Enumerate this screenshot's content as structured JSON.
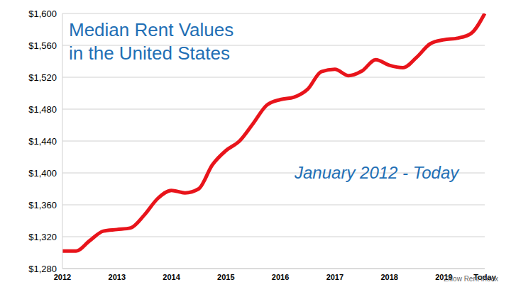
{
  "chart_data": {
    "type": "line",
    "title": "Median Rent Values in the United States",
    "annotation": "January 2012 - Today",
    "source": "Zillow Rent Index",
    "categories": [
      "2012",
      null,
      null,
      null,
      "2013",
      null,
      null,
      null,
      "2014",
      null,
      null,
      null,
      "2015",
      null,
      null,
      null,
      "2016",
      null,
      null,
      null,
      "2017",
      null,
      null,
      null,
      "2018",
      null,
      null,
      null,
      "2019",
      null,
      null,
      "Today"
    ],
    "values": [
      1302,
      1302,
      1315,
      1327,
      1329,
      1331,
      1347,
      1368,
      1378,
      1375,
      1380,
      1410,
      1428,
      1440,
      1462,
      1485,
      1492,
      1495,
      1505,
      1527,
      1530,
      1522,
      1528,
      1542,
      1535,
      1532,
      1545,
      1562,
      1567,
      1569,
      1575,
      1600
    ],
    "color": "#e8141b",
    "ylim": [
      1280,
      1600
    ],
    "yticks": [
      {
        "value": 1280,
        "label": "$1,280"
      },
      {
        "value": 1320,
        "label": "$1,320"
      },
      {
        "value": 1360,
        "label": "$1,360"
      },
      {
        "value": 1400,
        "label": "$1,400"
      },
      {
        "value": 1440,
        "label": "$1,440"
      },
      {
        "value": 1480,
        "label": "$1,480"
      },
      {
        "value": 1520,
        "label": "$1,520"
      },
      {
        "value": 1560,
        "label": "$1,560"
      },
      {
        "value": 1600,
        "label": "$1,600"
      }
    ],
    "grid": true
  }
}
